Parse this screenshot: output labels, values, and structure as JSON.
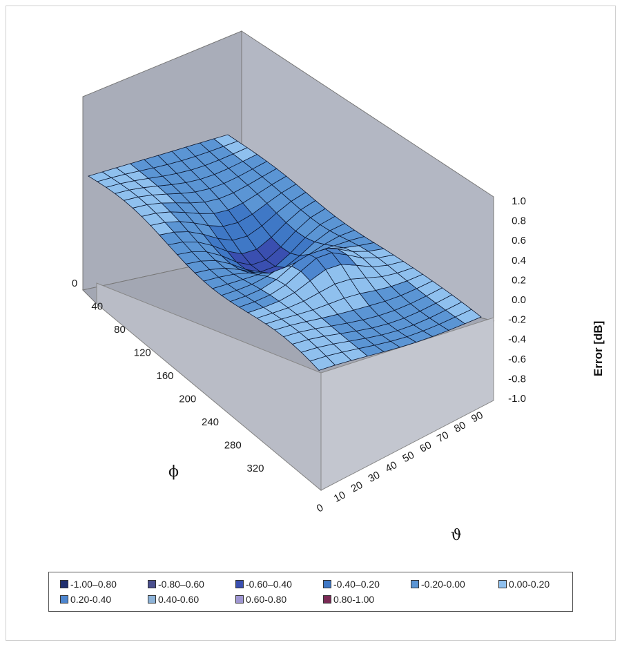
{
  "chart_data": {
    "type": "surface",
    "title": "",
    "zlabel": "Error [dB]",
    "xlabel": "ϑ",
    "ylabel": "ϕ",
    "z_ticks": [
      "1.0",
      "0.8",
      "0.6",
      "0.4",
      "0.2",
      "0.0",
      "-0.2",
      "-0.4",
      "-0.6",
      "-0.8",
      "-1.0"
    ],
    "zlim": [
      -1.0,
      1.0
    ],
    "theta_ticks": [
      "0",
      "10",
      "20",
      "30",
      "40",
      "50",
      "60",
      "70",
      "80",
      "90"
    ],
    "phi_ticks": [
      "0",
      "40",
      "80",
      "120",
      "160",
      "200",
      "240",
      "280",
      "320"
    ],
    "legend": [
      {
        "label": "-1.00–0.80",
        "color": "#1f2f6e"
      },
      {
        "label": "-0.80–0.60",
        "color": "#4a4f8e"
      },
      {
        "label": "-0.60–0.40",
        "color": "#3a4fb0"
      },
      {
        "label": "-0.40–0.20",
        "color": "#3f78c6"
      },
      {
        "label": "-0.20-0.00",
        "color": "#5b95d4"
      },
      {
        "label": "0.00-0.20",
        "color": "#8fc0ee"
      },
      {
        "label": "0.20-0.40",
        "color": "#4d86cf"
      },
      {
        "label": "0.40-0.60",
        "color": "#8db3d8"
      },
      {
        "label": "0.60-0.80",
        "color": "#9f96d2"
      },
      {
        "label": "0.80-1.00",
        "color": "#7a2a55"
      }
    ]
  }
}
